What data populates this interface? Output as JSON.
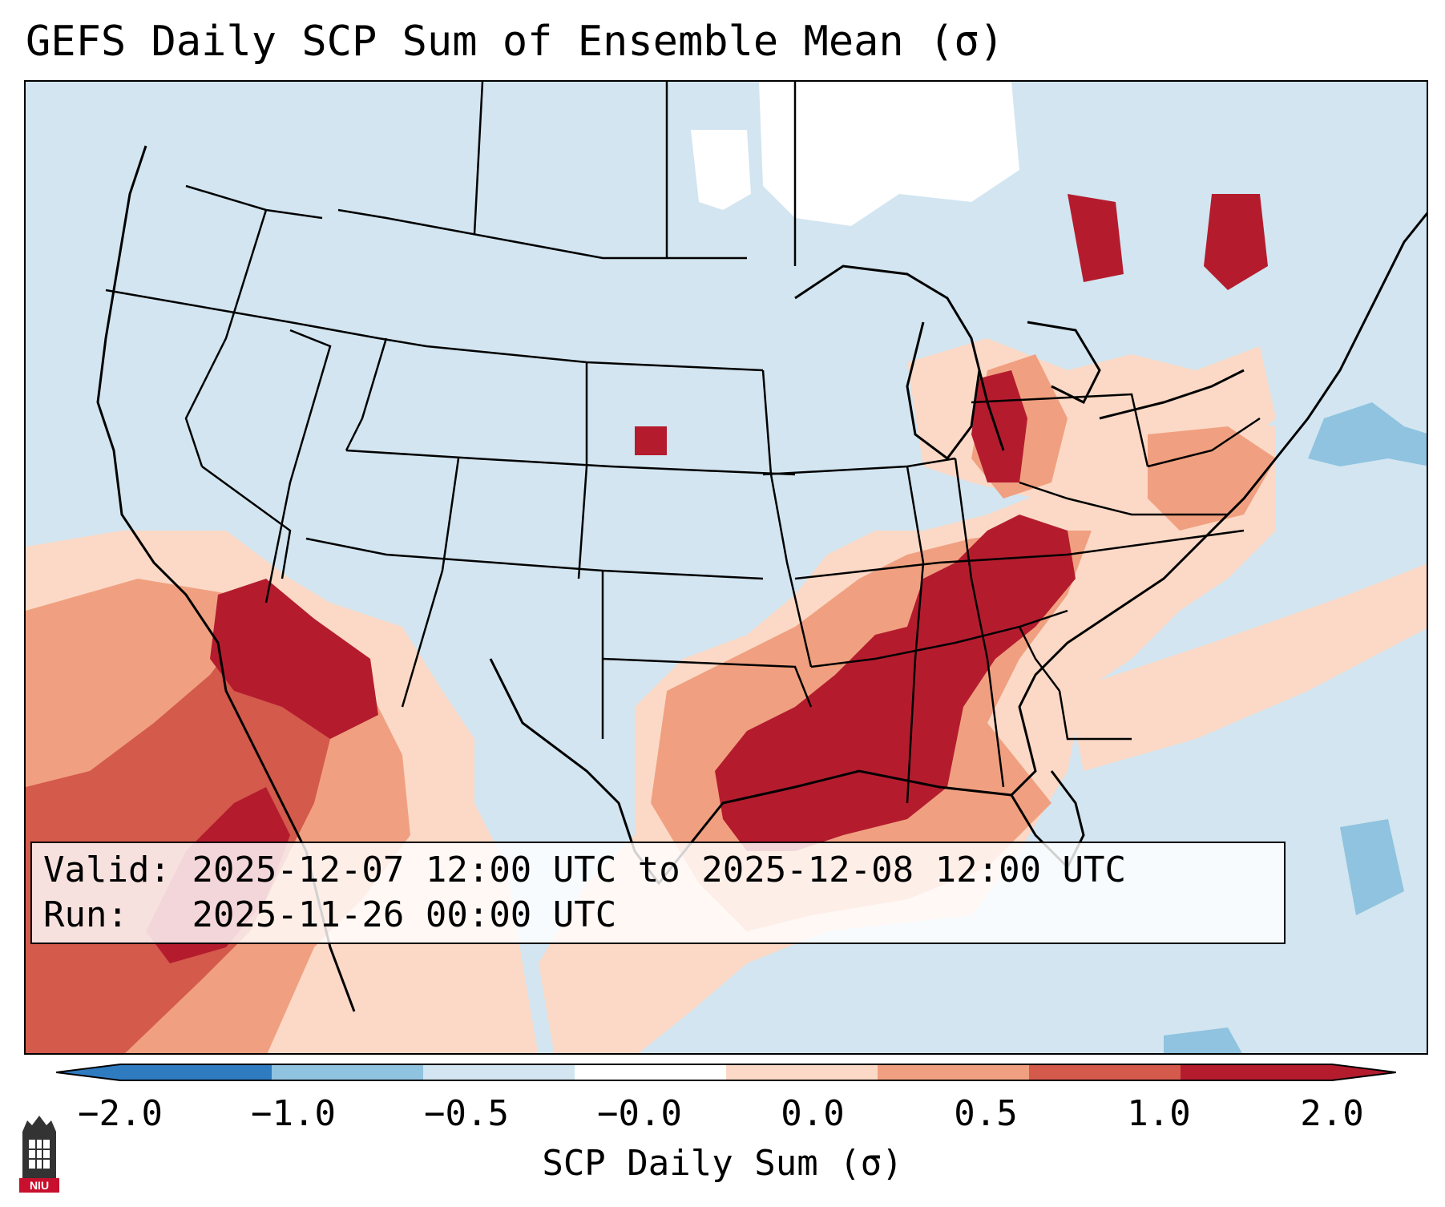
{
  "title": "GEFS Daily SCP Sum of Ensemble Mean (σ)",
  "info": {
    "valid_label": "Valid:",
    "valid_text": "2025-12-07 12:00 UTC to 2025-12-08 12:00 UTC",
    "run_label": "Run:",
    "run_text": "2025-11-26 00:00 UTC"
  },
  "colorbar": {
    "label": "SCP Daily Sum (σ)",
    "ticks": [
      "−2.0",
      "−1.0",
      "−0.5",
      "−0.0",
      "0.0",
      "0.5",
      "1.0",
      "2.0"
    ],
    "colors": [
      "#2f7bc0",
      "#8fc3df",
      "#d2e5f0",
      "#ffffff",
      "#fbd9c6",
      "#f0a080",
      "#d45a4c",
      "#b41c2e"
    ],
    "extend": "both"
  },
  "logo": {
    "text": "NIU",
    "icon": "niu-tower-logo-icon"
  }
}
